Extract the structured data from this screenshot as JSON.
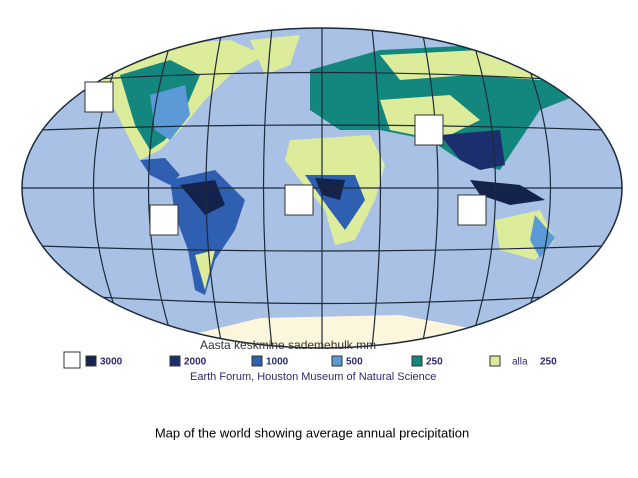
{
  "map": {
    "title": "Aasta keskmine sademehulk mm",
    "legend": [
      {
        "label": "3000",
        "color": "#14224e"
      },
      {
        "label": "2000",
        "color": "#1b2f6e"
      },
      {
        "label": "1000",
        "color": "#2f5fb0"
      },
      {
        "label": "500",
        "color": "#5b9ad6"
      },
      {
        "label": "250",
        "color": "#13877e"
      },
      {
        "prefix": "alla",
        "label": "250",
        "color": "#dcec9a"
      }
    ],
    "source": "Earth Forum, Houston Museum of Natural Science",
    "caption": "Map of the world showing average annual precipitation"
  }
}
